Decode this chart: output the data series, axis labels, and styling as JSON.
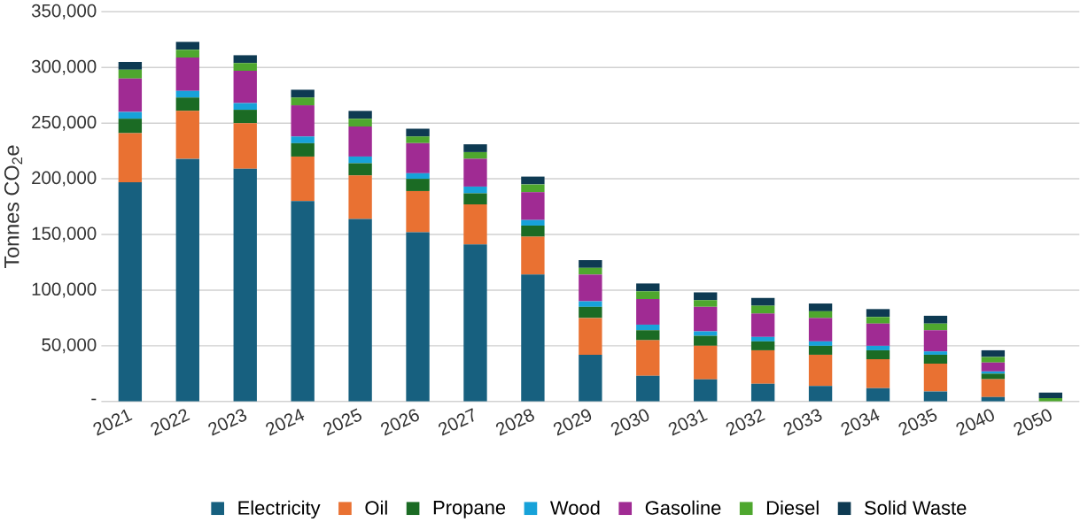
{
  "chart_data": {
    "type": "bar",
    "stacked": true,
    "ylabel": "Tonnes CO$_{2}$e",
    "categories": [
      "2021",
      "2022",
      "2023",
      "2024",
      "2025",
      "2026",
      "2027",
      "2028",
      "2029",
      "2030",
      "2031",
      "2032",
      "2033",
      "2034",
      "2035",
      "2040",
      "2050"
    ],
    "series": [
      {
        "name": "Electricity",
        "color": "#17607f",
        "values": [
          197000,
          218000,
          209000,
          180000,
          164000,
          152000,
          141000,
          114000,
          42000,
          23000,
          20000,
          16000,
          14000,
          12000,
          9000,
          4000,
          0
        ]
      },
      {
        "name": "Oil",
        "color": "#e97132",
        "values": [
          44000,
          43000,
          41000,
          40000,
          39000,
          37000,
          36000,
          34000,
          33000,
          32000,
          30000,
          30000,
          28000,
          26000,
          25000,
          16000,
          0
        ]
      },
      {
        "name": "Propane",
        "color": "#1b6b24",
        "values": [
          13000,
          12000,
          12000,
          12000,
          11000,
          11000,
          10000,
          10000,
          10000,
          9000,
          9000,
          8000,
          8000,
          8000,
          8000,
          5000,
          0
        ]
      },
      {
        "name": "Wood",
        "color": "#17a2d9",
        "values": [
          6000,
          6000,
          6000,
          6000,
          6000,
          5000,
          6000,
          5000,
          5000,
          5000,
          4000,
          4000,
          4000,
          4000,
          3000,
          2000,
          0
        ]
      },
      {
        "name": "Gasoline",
        "color": "#a02b93",
        "values": [
          30000,
          30000,
          29000,
          28000,
          27000,
          27000,
          25000,
          25000,
          24000,
          23000,
          22000,
          21000,
          21000,
          20000,
          19000,
          8000,
          0
        ]
      },
      {
        "name": "Diesel",
        "color": "#4ea72e",
        "values": [
          8000,
          7000,
          7000,
          7000,
          7000,
          6000,
          6000,
          7000,
          6000,
          7000,
          6000,
          7000,
          6000,
          6000,
          6000,
          5000,
          3000
        ]
      },
      {
        "name": "Solid Waste",
        "color": "#0e3a52",
        "values": [
          7000,
          7000,
          7000,
          7000,
          7000,
          7000,
          7000,
          7000,
          7000,
          7000,
          7000,
          7000,
          7000,
          7000,
          7000,
          6000,
          5000
        ]
      }
    ],
    "ylim": [
      0,
      350000
    ],
    "yticks": [
      {
        "value": 0,
        "label": "-"
      },
      {
        "value": 50000,
        "label": "50,000"
      },
      {
        "value": 100000,
        "label": "100,000"
      },
      {
        "value": 150000,
        "label": "150,000"
      },
      {
        "value": 200000,
        "label": "200,000"
      },
      {
        "value": 250000,
        "label": "250,000"
      },
      {
        "value": 300000,
        "label": "300,000"
      },
      {
        "value": 350000,
        "label": "350,000"
      }
    ],
    "grid": "y",
    "legend": "bottom"
  }
}
